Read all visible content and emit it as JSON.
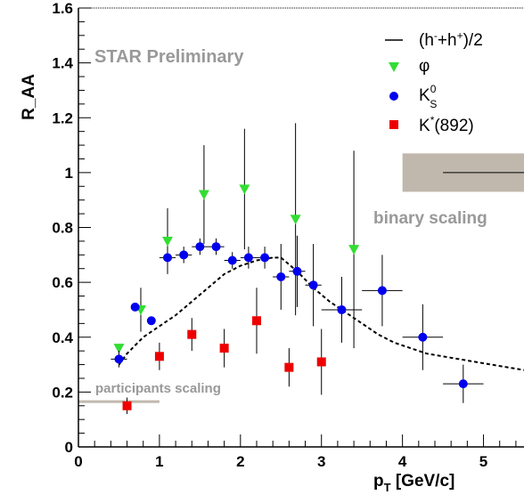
{
  "chart_data": {
    "type": "scatter",
    "title": "",
    "xlabel_main": "p",
    "xlabel_sub": "T",
    "xlabel_rest": " [GeV/c]",
    "ylabel": "R_AA",
    "xlim": [
      0,
      5.5
    ],
    "ylim": [
      0,
      1.6
    ],
    "x_ticks": [
      "0",
      "1",
      "2",
      "3",
      "4",
      "5"
    ],
    "y_ticks": [
      "0",
      "0.2",
      "0.4",
      "0.6",
      "0.8",
      "1",
      "1.2",
      "1.4",
      "1.6"
    ],
    "grid": false,
    "legend_position": "top-right",
    "annotations": {
      "star": "STAR Preliminary",
      "binary": "binary scaling",
      "participants": "participants scaling"
    },
    "reference_bands": {
      "binary": {
        "x": [
          4.0,
          5.5
        ],
        "y": [
          0.93,
          1.07
        ],
        "line_y": 1.0,
        "color": "#c0b8ad"
      },
      "participants": {
        "x": [
          0,
          1.0
        ],
        "y": 0.165,
        "color": "#c0b8ad"
      }
    },
    "series": [
      {
        "name": "(h-+h+)/2",
        "legend": {
          "main": "(h",
          "sup1": "-",
          "mid": "+h",
          "sup2": "+",
          "end": ")/2"
        },
        "kind": "dashed-line",
        "color": "#000000",
        "x": [
          0.5,
          0.6,
          0.7,
          0.8,
          0.9,
          1.0,
          1.2,
          1.4,
          1.6,
          1.8,
          2.0,
          2.2,
          2.4,
          2.5,
          2.7,
          2.9,
          3.1,
          3.3,
          3.5,
          3.7,
          3.9,
          4.1,
          4.3,
          4.5,
          4.7,
          4.9,
          5.1,
          5.3,
          5.5
        ],
        "y": [
          0.3,
          0.34,
          0.37,
          0.4,
          0.42,
          0.44,
          0.48,
          0.53,
          0.58,
          0.63,
          0.66,
          0.68,
          0.69,
          0.69,
          0.64,
          0.58,
          0.53,
          0.49,
          0.45,
          0.41,
          0.38,
          0.36,
          0.34,
          0.33,
          0.32,
          0.31,
          0.3,
          0.29,
          0.28
        ]
      },
      {
        "name": "φ",
        "kind": "triangle-down",
        "color": "#33dd33",
        "points": [
          {
            "x": 0.5,
            "y": 0.36,
            "ey": 0.0,
            "ex": 0.0
          },
          {
            "x": 0.77,
            "y": 0.5,
            "ey": 0.08,
            "ex": 0.0
          },
          {
            "x": 1.1,
            "y": 0.75,
            "ey": 0.12,
            "ex": 0.0
          },
          {
            "x": 1.55,
            "y": 0.92,
            "ey": 0.18,
            "ex": 0.0
          },
          {
            "x": 2.05,
            "y": 0.94,
            "ey": 0.22,
            "ex": 0.0
          },
          {
            "x": 2.68,
            "y": 0.83,
            "ey": 0.35,
            "ex": 0.0
          },
          {
            "x": 3.4,
            "y": 0.72,
            "ey": 0.36,
            "ex": 0.0
          }
        ]
      },
      {
        "name": "K0S",
        "legend": {
          "main": "K",
          "sup": "0",
          "sub": "S"
        },
        "kind": "circle",
        "color": "#0000ee",
        "points": [
          {
            "x": 0.5,
            "y": 0.32,
            "ey": 0.03,
            "ex": 0.1
          },
          {
            "x": 0.7,
            "y": 0.51,
            "ey": 0.0,
            "ex": 0.05
          },
          {
            "x": 0.9,
            "y": 0.46,
            "ey": 0.0,
            "ex": 0.05
          },
          {
            "x": 1.1,
            "y": 0.69,
            "ey": 0.03,
            "ex": 0.1
          },
          {
            "x": 1.3,
            "y": 0.7,
            "ey": 0.03,
            "ex": 0.1
          },
          {
            "x": 1.5,
            "y": 0.73,
            "ey": 0.03,
            "ex": 0.1
          },
          {
            "x": 1.7,
            "y": 0.73,
            "ey": 0.03,
            "ex": 0.1
          },
          {
            "x": 1.9,
            "y": 0.68,
            "ey": 0.03,
            "ex": 0.1
          },
          {
            "x": 2.1,
            "y": 0.69,
            "ey": 0.04,
            "ex": 0.1
          },
          {
            "x": 2.3,
            "y": 0.69,
            "ey": 0.04,
            "ex": 0.1
          },
          {
            "x": 2.5,
            "y": 0.62,
            "ey": 0.12,
            "ex": 0.1
          },
          {
            "x": 2.7,
            "y": 0.64,
            "ey": 0.13,
            "ex": 0.1
          },
          {
            "x": 2.9,
            "y": 0.59,
            "ey": 0.15,
            "ex": 0.1
          },
          {
            "x": 3.25,
            "y": 0.5,
            "ey": 0.12,
            "ex": 0.25
          },
          {
            "x": 3.75,
            "y": 0.57,
            "ey": 0.13,
            "ex": 0.25
          },
          {
            "x": 4.25,
            "y": 0.4,
            "ey": 0.12,
            "ex": 0.25
          },
          {
            "x": 4.75,
            "y": 0.23,
            "ey": 0.07,
            "ex": 0.25
          }
        ]
      },
      {
        "name": "K*(892)",
        "legend": {
          "main": "K",
          "sup": "*",
          "end": "(892)"
        },
        "kind": "square",
        "color": "#ee0000",
        "points": [
          {
            "x": 0.6,
            "y": 0.15,
            "ey": 0.03,
            "ex": 0.0
          },
          {
            "x": 1.0,
            "y": 0.33,
            "ey": 0.05,
            "ex": 0.0
          },
          {
            "x": 1.4,
            "y": 0.41,
            "ey": 0.06,
            "ex": 0.0
          },
          {
            "x": 1.8,
            "y": 0.36,
            "ey": 0.07,
            "ex": 0.0
          },
          {
            "x": 2.2,
            "y": 0.46,
            "ey": 0.12,
            "ex": 0.0
          },
          {
            "x": 2.6,
            "y": 0.29,
            "ey": 0.07,
            "ex": 0.0
          },
          {
            "x": 3.0,
            "y": 0.31,
            "ey": 0.12,
            "ex": 0.0
          }
        ]
      }
    ]
  }
}
